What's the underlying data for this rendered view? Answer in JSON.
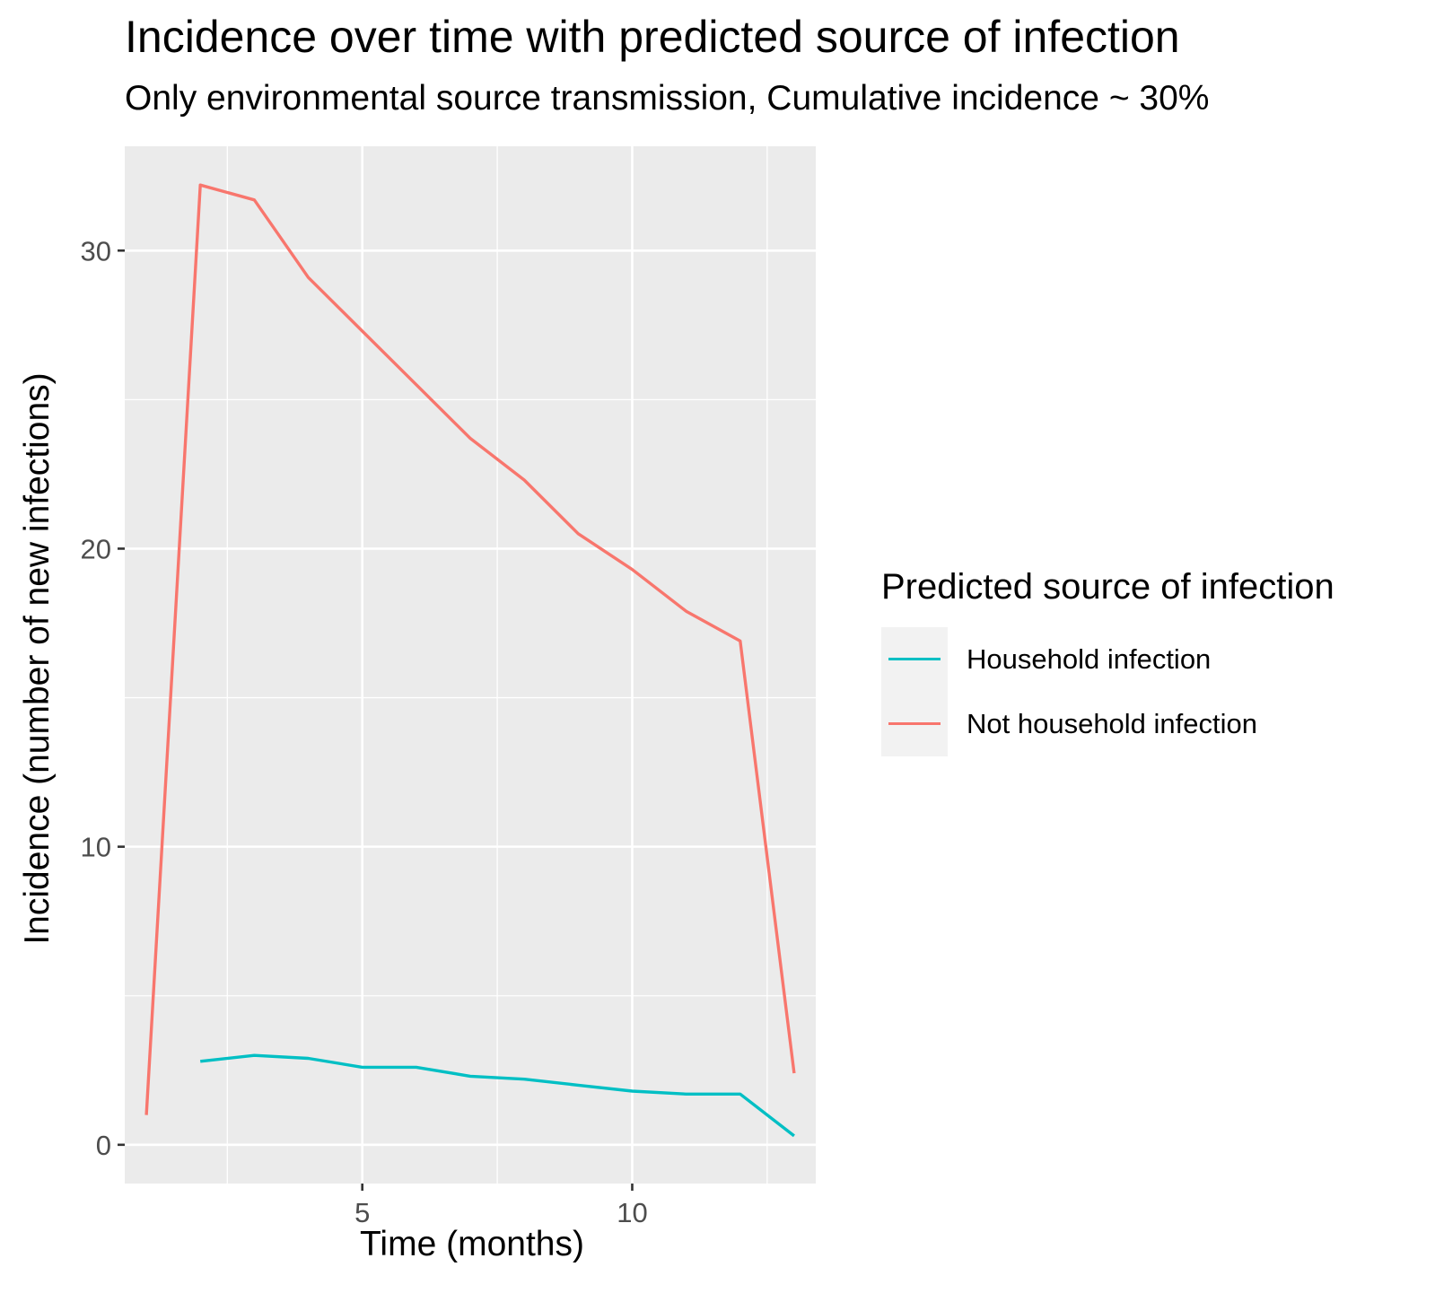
{
  "chart_data": {
    "type": "line",
    "title": "Incidence over time with predicted source of infection",
    "subtitle": "Only environmental source transmission, Cumulative incidence ~ 30%",
    "xlabel": "Time (months)",
    "ylabel": "Incidence (number of new infections)",
    "xlim": [
      0.6,
      13.4
    ],
    "ylim": [
      -1.3,
      33.5
    ],
    "x_ticks": [
      5,
      10
    ],
    "y_ticks": [
      0,
      10,
      20,
      30
    ],
    "grid": true,
    "legend_title": "Predicted source of infection",
    "legend_position": "right",
    "series": [
      {
        "name": "Household infection",
        "color": "#00bfc4",
        "x": [
          2,
          3,
          4,
          5,
          6,
          7,
          8,
          9,
          10,
          11,
          12,
          13
        ],
        "y": [
          2.8,
          3.0,
          2.9,
          2.6,
          2.6,
          2.3,
          2.2,
          2.0,
          1.8,
          1.7,
          1.7,
          0.3
        ]
      },
      {
        "name": "Not household infection",
        "color": "#f8766d",
        "x": [
          1,
          2,
          3,
          4,
          5,
          6,
          7,
          8,
          9,
          10,
          11,
          12,
          13
        ],
        "y": [
          1.0,
          32.2,
          31.7,
          29.1,
          27.3,
          25.5,
          23.7,
          22.3,
          20.5,
          19.3,
          17.9,
          16.9,
          2.4
        ]
      }
    ]
  }
}
